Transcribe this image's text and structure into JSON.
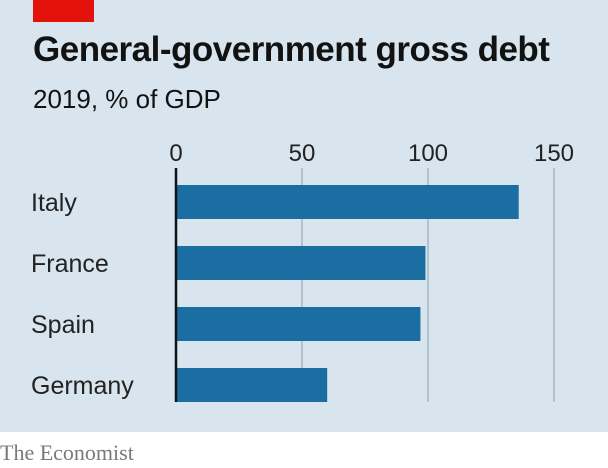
{
  "header": {
    "title": "General-government gross debt",
    "subtitle": "2019, % of GDP"
  },
  "footer": {
    "source": "The Economist"
  },
  "colors": {
    "bar": "#1a6ea2",
    "background": "#d8e5ee",
    "grid": "#b3c3ce",
    "accent": "#e3120b"
  },
  "chart_data": {
    "type": "bar",
    "orientation": "horizontal",
    "title": "General-government gross debt",
    "subtitle": "2019, % of GDP",
    "categories": [
      "Italy",
      "France",
      "Spain",
      "Germany"
    ],
    "values": [
      136,
      99,
      97,
      60
    ],
    "xlim": [
      0,
      150
    ],
    "xticks": [
      0,
      50,
      100,
      150
    ],
    "xlabel": "",
    "ylabel": "",
    "grid": true,
    "tick_position": "top"
  }
}
